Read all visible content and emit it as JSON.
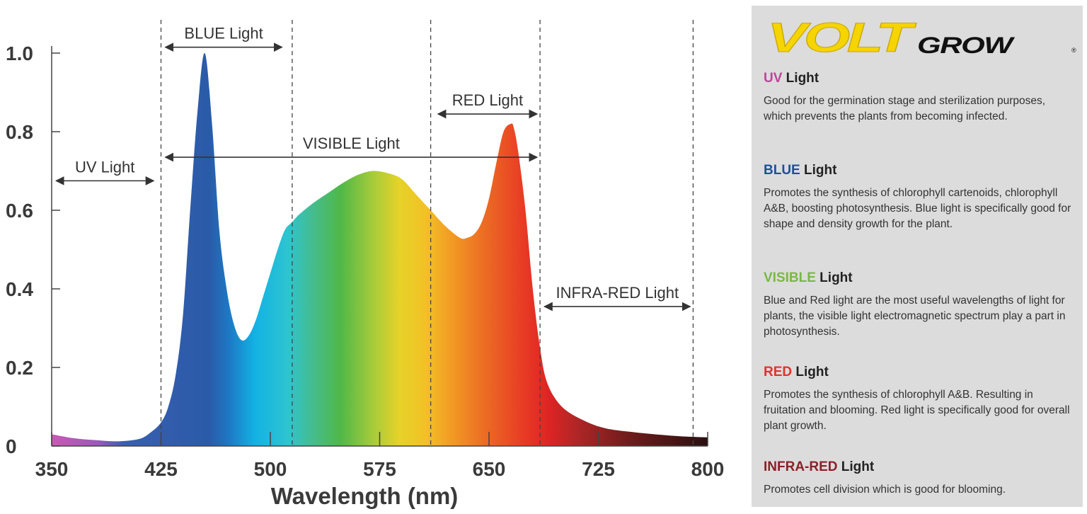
{
  "chart_data": {
    "type": "area",
    "title": "",
    "xlabel": "Wavelength (nm)",
    "ylabel": "",
    "xlim": [
      350,
      800
    ],
    "ylim": [
      0,
      1.0
    ],
    "x_ticks": [
      "350",
      "425",
      "500",
      "575",
      "650",
      "725",
      "800"
    ],
    "y_ticks": [
      "0",
      "0.2",
      "0.4",
      "0.6",
      "0.8",
      "1.0"
    ],
    "x": [
      350,
      365,
      380,
      395,
      410,
      418,
      425,
      430,
      435,
      440,
      445,
      450,
      455,
      460,
      465,
      470,
      475,
      480,
      485,
      490,
      495,
      500,
      505,
      510,
      515,
      520,
      530,
      540,
      550,
      560,
      570,
      580,
      590,
      600,
      610,
      620,
      630,
      635,
      640,
      645,
      650,
      655,
      660,
      665,
      667,
      670,
      675,
      680,
      685,
      690,
      700,
      715,
      730,
      750,
      770,
      785,
      800
    ],
    "y": [
      0.03,
      0.02,
      0.015,
      0.012,
      0.018,
      0.035,
      0.06,
      0.1,
      0.18,
      0.33,
      0.6,
      0.85,
      1.0,
      0.82,
      0.55,
      0.4,
      0.31,
      0.27,
      0.28,
      0.32,
      0.38,
      0.44,
      0.5,
      0.55,
      0.57,
      0.59,
      0.62,
      0.645,
      0.67,
      0.69,
      0.7,
      0.695,
      0.68,
      0.64,
      0.6,
      0.56,
      0.53,
      0.53,
      0.54,
      0.57,
      0.63,
      0.72,
      0.8,
      0.82,
      0.81,
      0.75,
      0.6,
      0.4,
      0.25,
      0.16,
      0.1,
      0.065,
      0.045,
      0.035,
      0.028,
      0.024,
      0.022
    ],
    "dashed_lines_x": [
      425,
      515,
      610,
      685,
      790
    ],
    "annotations": [
      {
        "label": "UV Light",
        "from": 353,
        "to": 420,
        "y": 0.675
      },
      {
        "label": "BLUE Light",
        "from": 428,
        "to": 508,
        "y": 1.015
      },
      {
        "label": "VISIBLE Light",
        "from": 428,
        "to": 683,
        "y": 0.735
      },
      {
        "label": "RED Light",
        "from": 615,
        "to": 683,
        "y": 0.845
      },
      {
        "label": "INFRA-RED Light",
        "from": 688,
        "to": 788,
        "y": 0.355
      }
    ]
  },
  "panel": {
    "logo_primary": "VOLT",
    "logo_secondary": "GROW",
    "logo_mark": "®",
    "sections": [
      {
        "key": "UV",
        "rest": " Light",
        "color": "#c0449a",
        "text": "Good for the germination stage and sterilization purposes, which prevents the plants from becoming infected."
      },
      {
        "key": "BLUE",
        "rest": " Light",
        "color": "#1f4f9e",
        "text": "Promotes the synthesis of chlorophyll cartenoids, chlorophyll A&B, boosting photosynthesis. Blue light is specifically good for shape and density growth for the plant."
      },
      {
        "key": "VISIBLE",
        "rest": " Light",
        "color": "#7ab843",
        "text": "Blue and Red light are the most useful wavelengths of light for plants, the visible light electromagnetic spectrum play a part in photosynthesis."
      },
      {
        "key": "RED",
        "rest": " Light",
        "color": "#e2322a",
        "text": "Promotes the synthesis of chlorophyll A&B. Resulting in fruitation and blooming. Red light is specifically good for overall plant growth."
      },
      {
        "key": "INFRA-RED",
        "rest": " Light",
        "color": "#8a2028",
        "text": "Promotes cell division which is good for blooming."
      }
    ]
  }
}
